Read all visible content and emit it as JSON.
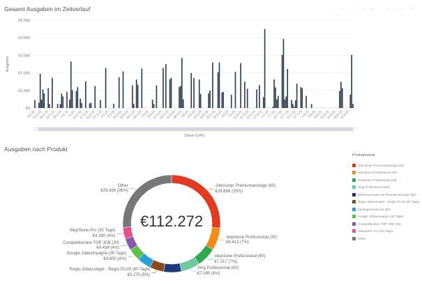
{
  "chart_data": [
    {
      "type": "bar",
      "title": "Gesamt Ausgaben im Zeitverlauf",
      "xlabel": "Datum (DAY)",
      "ylabel": "Ausgaben",
      "ylim": [
        0,
        5000
      ],
      "yticks": [
        "€0",
        "€1.000",
        "€2.000",
        "€3.000",
        "€4.000",
        "€5.000"
      ],
      "ytick_values": [
        0,
        1000,
        2000,
        3000,
        4000,
        5000
      ],
      "xrange": [
        "8.1.21",
        "3.9.21"
      ],
      "xticks": [
        "8.1.21",
        "13.1.21",
        "18.1.21",
        "23.1.21",
        "28.1.21",
        "2.2.21",
        "7.2.21",
        "12.2.21",
        "17.2.21",
        "22.2.21",
        "27.2.21",
        "4.3.21",
        "9.3.21",
        "14.3.21",
        "19.3.21",
        "24.3.21",
        "29.3.21",
        "3.4.21",
        "8.4.21",
        "13.4.21",
        "18.4.21",
        "23.4.21",
        "28.4.21",
        "3.5.21",
        "8.5.21",
        "13.5.21",
        "18.5.21",
        "23.5.21",
        "28.5.21",
        "2.6.21",
        "7.6.21",
        "12.6.21",
        "17.6.21",
        "22.6.21",
        "27.6.21",
        "2.7.21",
        "7.7.21",
        "12.7.21",
        "17.7.21",
        "22.7.21",
        "27.7.21",
        "1.8.21",
        "6.8.21",
        "11.8.21",
        "16.8.21",
        "21.8.21",
        "26.8.21",
        "31.8.21"
      ],
      "grid": true,
      "bar_color": "#2c3e50",
      "points": [
        [
          "8.1.21",
          460
        ],
        [
          "11.1.21",
          300
        ],
        [
          "12.1.21",
          1950
        ],
        [
          "13.1.21",
          470
        ],
        [
          "14.1.21",
          1060
        ],
        [
          "15.1.21",
          830
        ],
        [
          "18.1.21",
          1130
        ],
        [
          "19.1.21",
          230
        ],
        [
          "21.1.21",
          1720
        ],
        [
          "25.1.21",
          230
        ],
        [
          "27.1.21",
          230
        ],
        [
          "28.1.21",
          820
        ],
        [
          "29.1.21",
          660
        ],
        [
          "1.2.21",
          920
        ],
        [
          "3.2.21",
          480
        ],
        [
          "4.2.21",
          2650
        ],
        [
          "5.2.21",
          1020
        ],
        [
          "8.2.21",
          960
        ],
        [
          "9.2.21",
          1200
        ],
        [
          "11.2.21",
          530
        ],
        [
          "12.2.21",
          290
        ],
        [
          "15.2.21",
          1520
        ],
        [
          "18.2.21",
          260
        ],
        [
          "19.2.21",
          300
        ],
        [
          "22.2.21",
          1250
        ],
        [
          "26.2.21",
          460
        ],
        [
          "2.3.21",
          2280
        ],
        [
          "8.3.21",
          240
        ],
        [
          "12.3.21",
          1750
        ],
        [
          "15.3.21",
          2080
        ],
        [
          "22.3.21",
          1290
        ],
        [
          "23.3.21",
          230
        ],
        [
          "25.3.21",
          1620
        ],
        [
          "26.3.21",
          1330
        ],
        [
          "29.3.21",
          2250
        ],
        [
          "6.4.21",
          480
        ],
        [
          "7.4.21",
          230
        ],
        [
          "9.4.21",
          1290
        ],
        [
          "14.4.21",
          2280
        ],
        [
          "16.4.21",
          2500
        ],
        [
          "19.4.21",
          1640
        ],
        [
          "20.4.21",
          1720
        ],
        [
          "26.4.21",
          1200
        ],
        [
          "27.4.21",
          1260
        ],
        [
          "28.4.21",
          2850
        ],
        [
          "29.4.21",
          500
        ],
        [
          "5.5.21",
          1990
        ],
        [
          "7.5.21",
          1710
        ],
        [
          "11.5.21",
          1620
        ],
        [
          "12.5.21",
          800
        ],
        [
          "18.5.21",
          840
        ],
        [
          "19.5.21",
          1000
        ],
        [
          "21.5.21",
          2590
        ],
        [
          "25.5.21",
          2040
        ],
        [
          "26.5.21",
          2590
        ],
        [
          "28.5.21",
          890
        ],
        [
          "29.5.21",
          920
        ],
        [
          "4.6.21",
          760
        ],
        [
          "7.6.21",
          2060
        ],
        [
          "11.6.21",
          2560
        ],
        [
          "14.6.21",
          1500
        ],
        [
          "16.6.21",
          1100
        ],
        [
          "23.6.21",
          1060
        ],
        [
          "25.6.21",
          1300
        ],
        [
          "28.6.21",
          620
        ],
        [
          "29.6.21",
          4500
        ],
        [
          "5.7.21",
          70
        ],
        [
          "6.7.21",
          1630
        ],
        [
          "7.7.21",
          1180
        ],
        [
          "8.7.21",
          490
        ],
        [
          "9.7.21",
          690
        ],
        [
          "12.7.21",
          3020
        ],
        [
          "13.7.21",
          3940
        ],
        [
          "14.7.21",
          490
        ],
        [
          "15.7.21",
          660
        ],
        [
          "16.7.21",
          2220
        ],
        [
          "19.7.21",
          460
        ],
        [
          "20.7.21",
          230
        ],
        [
          "21.7.21",
          70
        ],
        [
          "22.7.21",
          440
        ],
        [
          "23.7.21",
          1390
        ],
        [
          "26.7.21",
          1190
        ],
        [
          "27.7.21",
          1130
        ],
        [
          "30.7.21",
          690
        ],
        [
          "3.8.21",
          230
        ],
        [
          "24.8.21",
          970
        ],
        [
          "25.8.21",
          1500
        ],
        [
          "26.8.21",
          1130
        ],
        [
          "1.9.21",
          760
        ],
        [
          "2.9.21",
          3020
        ],
        [
          "3.9.21",
          230
        ]
      ]
    },
    {
      "type": "pie",
      "title": "Ausgaben nach Produkt",
      "total_label": "€112.272",
      "legend_title": "Produktname",
      "legend_position": "right",
      "slices": [
        {
          "name": "Jobcluster Premiumanzeige (60)",
          "value": 29686,
          "label": "Jobcluster Premiumanzeige (60)",
          "sub": "€29.686 (26%)",
          "color": "#e03c22"
        },
        {
          "name": "stepstone Professional (30)",
          "value": 8413,
          "label": "stepstone Professional (30)",
          "sub": "€8.413 (7%)",
          "color": "#f28a1c"
        },
        {
          "name": "stepstone Professional (60)",
          "value": 7317,
          "label": "stepstone Professional (60)",
          "sub": "€7.317 (7%)",
          "color": "#2fa84f"
        },
        {
          "name": "Xing Professional (60)",
          "value": 7090,
          "label": "Xing Professional (60)",
          "sub": "€7.090 (6%)",
          "color": "#6cc9a0"
        },
        {
          "name": "stellenanzeigen.de Premiumanzeige (60)",
          "value": 6600,
          "color": "#1f3a7a"
        },
        {
          "name": "Regio-Jobanzeiger - Regio PLUS (60 Tage)",
          "value": 5275,
          "label": "Regio-Jobanzeiger - Regio PLUS (60 Tage)",
          "sub": "€5.275 (5%)",
          "color": "#8a4b1c"
        },
        {
          "name": "baumgeneur24.de (60)",
          "value": 5141,
          "color": "#2a9fd6"
        },
        {
          "name": "Google Jobkampagne (30 Tage)",
          "value": 4600,
          "label": "Google Jobkampagne (30 Tage)",
          "sub": "€4.600 (4%)",
          "color": "#5cc04a"
        },
        {
          "name": "Competitionline TOP JOB (30)",
          "value": 4434,
          "label": "Competitionline TOP JOB (30)",
          "sub": "€4.434 (4%)",
          "color": "#8a55b0"
        },
        {
          "name": "StepStone Pro (30 Tage)",
          "value": 4280,
          "label": "StepStone Pro (30 Tage)",
          "sub": "€4.280 (4%)",
          "color": "#e8508a"
        },
        {
          "name": "Other",
          "value": 29436,
          "label": "Other",
          "sub": "€29.436 (26%)",
          "color": "#777777"
        }
      ]
    }
  ],
  "share_icons": [
    "facebook-icon",
    "twitter-icon",
    "reddit-icon",
    "linkedin-icon",
    "pinterest-icon",
    "tumblr-icon",
    "pinterest-icon",
    "vk-icon",
    "email-icon"
  ]
}
